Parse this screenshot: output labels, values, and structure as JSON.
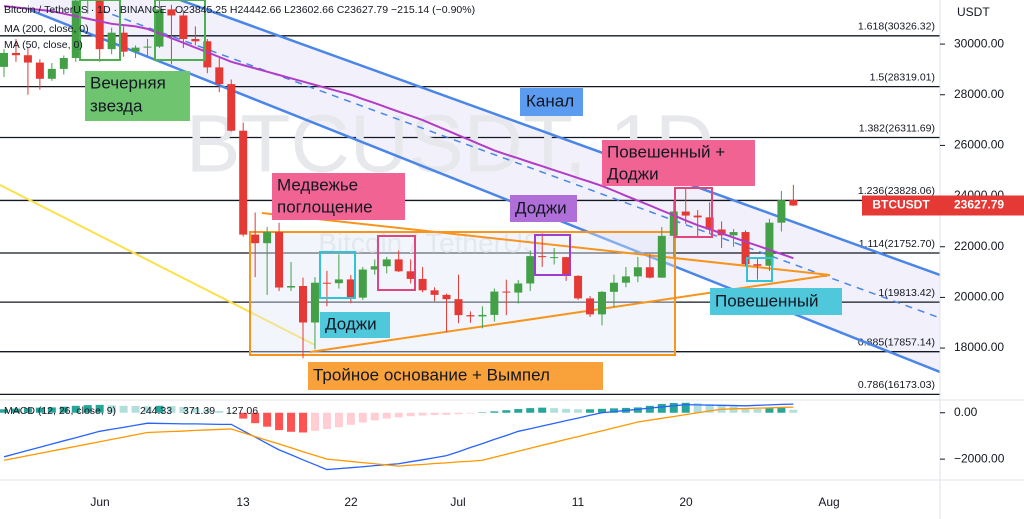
{
  "header": {
    "symbol": "Bitcoin / TetherUS · 1D · BINANCE",
    "ohlc": "O23845.25 H24442.66 L23602.66 C23627.79 −215.14 (−0.90%)"
  },
  "ma_legends": [
    "MA (200, close, 0)",
    "MA (50, close, 0)"
  ],
  "annotations": {
    "evening_star": [
      "Вечерняя",
      "звезда"
    ],
    "channel": "Канал",
    "bearish_engulfing": [
      "Медвежье",
      "поглощение"
    ],
    "doji_top": "Доджи",
    "hanging_doji": [
      "Повешенный +",
      "Доджи"
    ],
    "doji_bottom": "Доджи",
    "hanging": "Повешенный",
    "triple_bottom": "Тройное основание + Вымпел"
  },
  "chart_data": {
    "type": "candlestick",
    "watermark": "BTCUSDT, 1D",
    "watermark_sub": "Bitcoin / TetherUS",
    "axis_unit": "USDT",
    "up_color": "#43a047",
    "down_color": "#e53935",
    "ylim": [
      15950,
      31740
    ],
    "yticks": [
      {
        "value": 18000,
        "label": "18000.00"
      },
      {
        "value": 20000,
        "label": "20000.00"
      },
      {
        "value": 22000,
        "label": "22000.00"
      },
      {
        "value": 24000,
        "label": "24000.00"
      },
      {
        "value": 26000,
        "label": "26000.00"
      },
      {
        "value": 28000,
        "label": "28000.00"
      },
      {
        "value": 30000,
        "label": "30000.00"
      }
    ],
    "fib_levels": [
      {
        "value": 30326.32,
        "label": "1.618(30326.32)"
      },
      {
        "value": 28319.01,
        "label": "1.5(28319.01)"
      },
      {
        "value": 26311.69,
        "label": "1.382(26311.69)"
      },
      {
        "value": 23828.06,
        "label": "1.236(23828.06)"
      },
      {
        "value": 21752.7,
        "label": "1.114(21752.70)"
      },
      {
        "value": 19813.42,
        "label": "1(19813.42)"
      },
      {
        "value": 17857.14,
        "label": "0.885(17857.14)"
      },
      {
        "value": 16173.03,
        "label": "0.786(16173.03)"
      }
    ],
    "time_labels": [
      "Jun",
      "13",
      "22",
      "Jul",
      "11",
      "20",
      "Aug"
    ],
    "price_tag": {
      "symbol": "BTCUSDT",
      "price": 23627.79
    },
    "candles": [
      [
        29100,
        29800,
        28700,
        29650
      ],
      [
        29650,
        30200,
        29300,
        29560
      ],
      [
        29560,
        29850,
        28000,
        29270
      ],
      [
        29270,
        29400,
        28200,
        28630
      ],
      [
        28630,
        29250,
        28550,
        29020
      ],
      [
        29020,
        29550,
        28800,
        29450
      ],
      [
        29450,
        32200,
        29300,
        31720
      ],
      [
        31720,
        32400,
        31200,
        31790
      ],
      [
        31790,
        31980,
        29300,
        29800
      ],
      [
        29800,
        30650,
        29600,
        30450
      ],
      [
        30450,
        30700,
        29500,
        29700
      ],
      [
        29700,
        29950,
        29450,
        29860
      ],
      [
        29860,
        30200,
        29500,
        29900
      ],
      [
        29900,
        31700,
        29850,
        31370
      ],
      [
        31370,
        31550,
        29200,
        31130
      ],
      [
        31130,
        31330,
        29850,
        30200
      ],
      [
        30200,
        30700,
        29950,
        30110
      ],
      [
        30110,
        30200,
        28850,
        29080
      ],
      [
        29080,
        29450,
        28100,
        28420
      ],
      [
        28420,
        28600,
        26550,
        26580
      ],
      [
        26580,
        26900,
        22400,
        22480
      ],
      [
        22480,
        23350,
        20800,
        22140
      ],
      [
        22140,
        22780,
        20100,
        22580
      ],
      [
        22580,
        22950,
        20250,
        20390
      ],
      [
        20390,
        21400,
        20250,
        20450
      ],
      [
        20450,
        20780,
        17600,
        19010
      ],
      [
        19010,
        20800,
        17950,
        20580
      ],
      [
        20580,
        21050,
        19650,
        20560
      ],
      [
        20560,
        21700,
        20350,
        20710
      ],
      [
        20710,
        20880,
        19770,
        19990
      ],
      [
        19990,
        21200,
        19900,
        21100
      ],
      [
        21100,
        21500,
        20900,
        21230
      ],
      [
        21230,
        21600,
        20950,
        21500
      ],
      [
        21500,
        21850,
        21000,
        21030
      ],
      [
        21030,
        21500,
        20550,
        20730
      ],
      [
        20730,
        21200,
        20200,
        20280
      ],
      [
        20280,
        20400,
        19850,
        20100
      ],
      [
        20100,
        20150,
        18630,
        19930
      ],
      [
        19930,
        20900,
        18980,
        19300
      ],
      [
        19300,
        19450,
        19000,
        19250
      ],
      [
        19250,
        19650,
        18780,
        19310
      ],
      [
        19310,
        20350,
        19050,
        20230
      ],
      [
        20230,
        20700,
        19300,
        20190
      ],
      [
        20190,
        20680,
        19760,
        20550
      ],
      [
        20550,
        21850,
        20250,
        21630
      ],
      [
        21630,
        22530,
        21200,
        21590
      ],
      [
        21590,
        21950,
        21300,
        21590
      ],
      [
        21590,
        21600,
        20650,
        20850
      ],
      [
        20850,
        20880,
        19900,
        19960
      ],
      [
        19960,
        20050,
        19230,
        19330
      ],
      [
        19330,
        20250,
        18900,
        20220
      ],
      [
        20220,
        20900,
        19620,
        20580
      ],
      [
        20580,
        21200,
        20400,
        20830
      ],
      [
        20830,
        21600,
        20600,
        21190
      ],
      [
        21190,
        21700,
        20750,
        20780
      ],
      [
        20780,
        22780,
        20770,
        22430
      ],
      [
        22430,
        23800,
        21600,
        23390
      ],
      [
        23390,
        24280,
        22900,
        23230
      ],
      [
        23230,
        23450,
        22350,
        23160
      ],
      [
        23160,
        23750,
        22500,
        22680
      ],
      [
        22680,
        23000,
        21950,
        22450
      ],
      [
        22450,
        22700,
        22000,
        22580
      ],
      [
        22580,
        22650,
        21250,
        21310
      ],
      [
        21310,
        21550,
        20700,
        21250
      ],
      [
        21250,
        23100,
        21040,
        22950
      ],
      [
        22950,
        24200,
        22600,
        23840
      ],
      [
        23845.25,
        24442.66,
        23602.66,
        23627.79
      ]
    ],
    "ma": {
      "color": "#b23cc8",
      "values": [
        31500,
        31450,
        31400,
        31350,
        31300,
        31200,
        31100,
        31000,
        30900,
        30800,
        30750,
        30700,
        30600,
        30420,
        30230,
        30050,
        29860,
        29680,
        29490,
        29300,
        29170,
        29040,
        28910,
        28780,
        28650,
        28520,
        28390,
        28260,
        28130,
        28000,
        27830,
        27670,
        27500,
        27330,
        27170,
        27000,
        26800,
        26600,
        26400,
        26200,
        26000,
        25800,
        25640,
        25490,
        25330,
        25180,
        25020,
        24870,
        24710,
        24560,
        24400,
        24210,
        24010,
        23820,
        23630,
        23430,
        23240,
        23040,
        22850,
        22690,
        22530,
        22360,
        22200,
        22040,
        21880,
        21710,
        21550
      ]
    },
    "macd": {
      "legend": "MACD (12, 26, close, 9)",
      "legend_values": [
        244.33,
        371.39,
        127.06
      ],
      "ylim": [
        -2900,
        550
      ],
      "yticks": [
        {
          "value": 0,
          "label": "0.00"
        },
        {
          "value": -2000,
          "label": "−2000.00"
        }
      ],
      "series": [
        {
          "name": "MACD",
          "color": "#2962ff",
          "values": [
            -1900,
            -1760,
            -1620,
            -1490,
            -1350,
            -1210,
            -1080,
            -940,
            -800,
            -710,
            -630,
            -540,
            -450,
            -460,
            -470,
            -480,
            -480,
            -490,
            -500,
            -500,
            -780,
            -1050,
            -1330,
            -1600,
            -1810,
            -2030,
            -2240,
            -2450,
            -2410,
            -2370,
            -2330,
            -2280,
            -2240,
            -2200,
            -2110,
            -2030,
            -1940,
            -1850,
            -1680,
            -1500,
            -1330,
            -1150,
            -980,
            -800,
            -690,
            -570,
            -460,
            -340,
            -230,
            -110,
            0,
            50,
            100,
            150,
            200,
            250,
            300,
            350,
            340,
            330,
            320,
            310,
            300,
            320,
            340,
            360,
            371.39
          ]
        },
        {
          "name": "Signal",
          "color": "#ff9800",
          "values": [
            -2050,
            -1950,
            -1850,
            -1750,
            -1650,
            -1550,
            -1450,
            -1350,
            -1250,
            -1150,
            -1050,
            -950,
            -850,
            -830,
            -810,
            -790,
            -760,
            -740,
            -720,
            -700,
            -860,
            -1030,
            -1190,
            -1350,
            -1510,
            -1680,
            -1840,
            -2000,
            -2050,
            -2100,
            -2150,
            -2200,
            -2250,
            -2300,
            -2260,
            -2230,
            -2190,
            -2160,
            -2120,
            -2090,
            -2050,
            -1920,
            -1790,
            -1660,
            -1530,
            -1400,
            -1280,
            -1150,
            -1030,
            -900,
            -780,
            -650,
            -530,
            -400,
            -320,
            -240,
            -160,
            -80,
            0,
            80,
            150,
            170,
            180,
            200,
            210,
            230,
            244.33
          ]
        }
      ],
      "histogram": [
        150,
        180,
        200,
        220,
        230,
        260,
        300,
        330,
        340,
        320,
        300,
        290,
        280,
        300,
        290,
        250,
        200,
        150,
        80,
        20,
        -250,
        -450,
        -600,
        -750,
        -820,
        -850,
        -780,
        -700,
        -620,
        -520,
        -420,
        -330,
        -250,
        -200,
        -150,
        -120,
        -100,
        -90,
        -60,
        -30,
        20,
        60,
        110,
        160,
        200,
        220,
        200,
        170,
        150,
        150,
        170,
        190,
        210,
        230,
        300,
        380,
        420,
        430,
        410,
        370,
        330,
        270,
        200,
        170,
        200,
        230,
        127.06
      ]
    }
  }
}
